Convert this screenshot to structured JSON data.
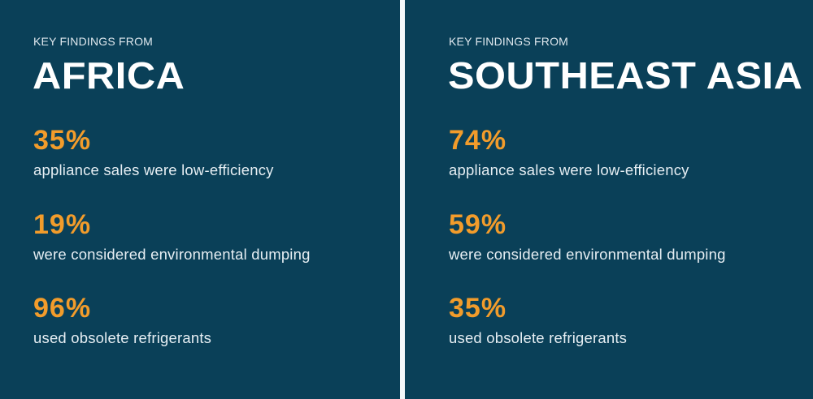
{
  "theme": {
    "background": "#0a4058",
    "accent": "#f29c2b",
    "divider": "#f4f8fa",
    "title_color": "#ffffff"
  },
  "panels": [
    {
      "kicker": "KEY FINDINGS FROM",
      "region": "AFRICA",
      "stats": [
        {
          "value": "35%",
          "description": "appliance sales were low-efficiency"
        },
        {
          "value": "19%",
          "description": "were considered environmental dumping"
        },
        {
          "value": "96%",
          "description": "used obsolete refrigerants"
        }
      ]
    },
    {
      "kicker": "KEY FINDINGS FROM",
      "region": "SOUTHEAST ASIA",
      "stats": [
        {
          "value": "74%",
          "description": "appliance sales were low-efficiency"
        },
        {
          "value": "59%",
          "description": "were considered environmental dumping"
        },
        {
          "value": "35%",
          "description": "used obsolete refrigerants"
        }
      ]
    }
  ]
}
